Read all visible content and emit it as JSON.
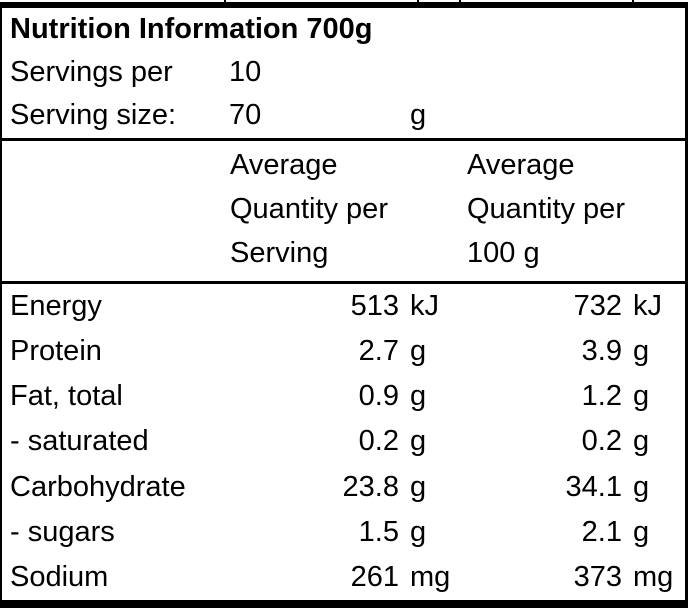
{
  "colors": {
    "text": "#000000",
    "background": "#ffffff",
    "border": "#000000"
  },
  "title": "Nutrition Information 700g",
  "meta": {
    "servings_per_label": "Servings per",
    "servings_per_value": "10",
    "serving_size_label": "Serving size:",
    "serving_size_value": "70",
    "serving_size_unit": "g"
  },
  "columns": {
    "per_serving": [
      "Average",
      "Quantity per",
      "Serving"
    ],
    "per_100g": [
      "Average",
      "Quantity per",
      "100 g"
    ]
  },
  "rows": [
    {
      "label": "Energy",
      "serving_value": "513",
      "serving_unit": "kJ",
      "per100_value": "732",
      "per100_unit": "kJ"
    },
    {
      "label": "Protein",
      "serving_value": "2.7",
      "serving_unit": "g",
      "per100_value": "3.9",
      "per100_unit": "g"
    },
    {
      "label": "Fat, total",
      "serving_value": "0.9",
      "serving_unit": "g",
      "per100_value": "1.2",
      "per100_unit": "g"
    },
    {
      "label": "- saturated",
      "serving_value": "0.2",
      "serving_unit": "g",
      "per100_value": "0.2",
      "per100_unit": "g"
    },
    {
      "label": "Carbohydrate",
      "serving_value": "23.8",
      "serving_unit": "g",
      "per100_value": "34.1",
      "per100_unit": "g"
    },
    {
      "label": "- sugars",
      "serving_value": "1.5",
      "serving_unit": "g",
      "per100_value": "2.1",
      "per100_unit": "g"
    },
    {
      "label": "Sodium",
      "serving_value": "261",
      "serving_unit": "mg",
      "per100_value": "373",
      "per100_unit": "mg"
    }
  ]
}
